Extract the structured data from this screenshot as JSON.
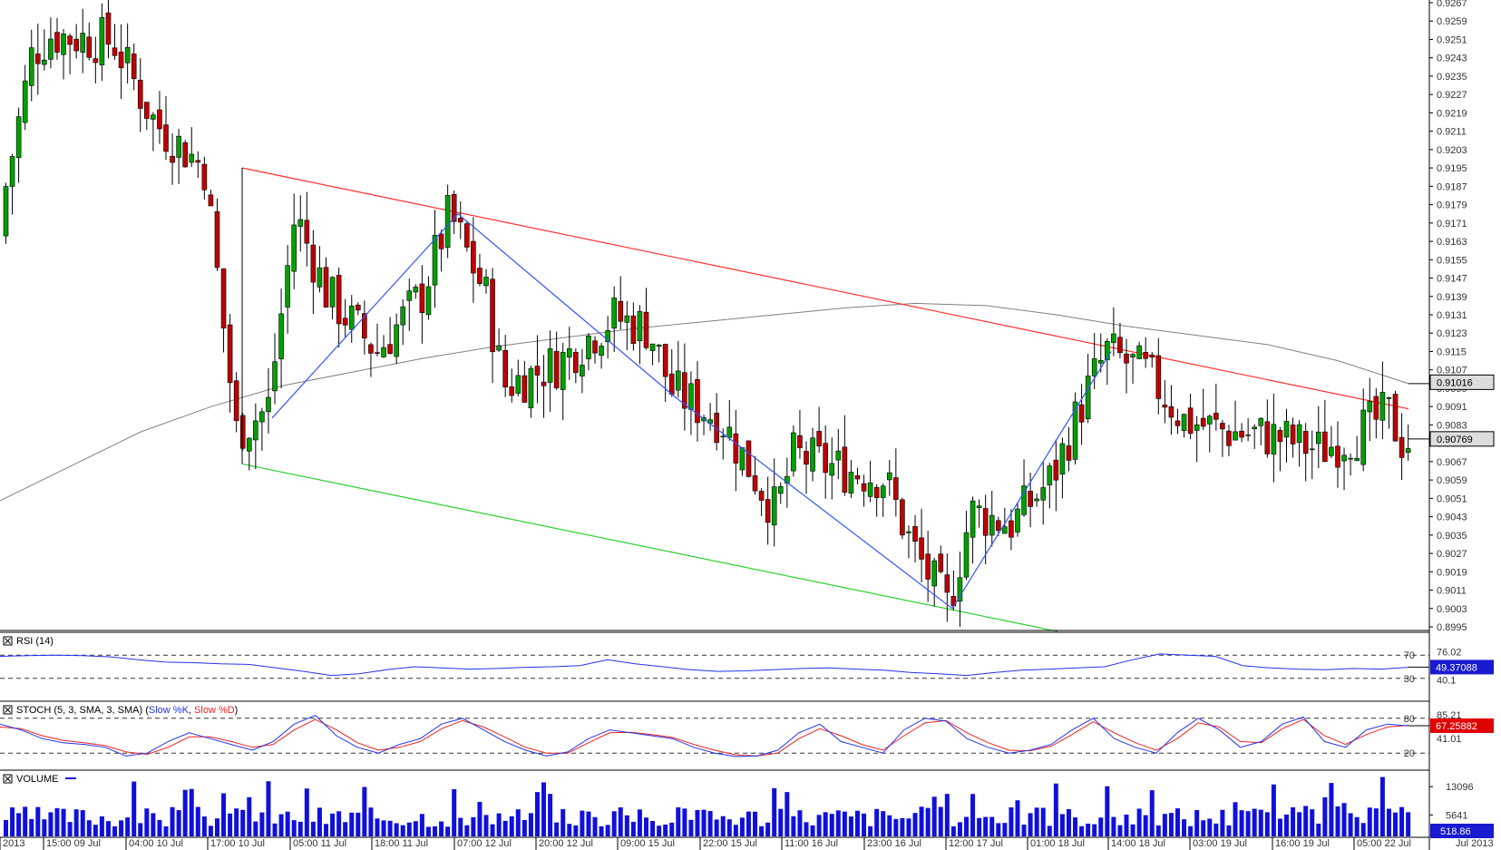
{
  "colors": {
    "up_candle": "#00a000",
    "down_candle": "#c00000",
    "wick": "#000000",
    "resistance_line": "#ff3030",
    "support_line": "#30d030",
    "pattern_line": "#3355ff",
    "moving_average": "#808080",
    "rsi_line": "#2233ee",
    "stoch_k": "#2233ee",
    "stoch_d": "#ee2222",
    "volume": "#1010dd",
    "price_tag_bg": "#dddddd",
    "rsi_tag_bg": "#1a1ad0",
    "stoch_tag_bg": "#e00000",
    "volume_tag_bg": "#1a1ad0"
  },
  "chart_data": {
    "type": "candlestick",
    "y_ticks": [
      "0.9267",
      "0.9259",
      "0.9251",
      "0.9243",
      "0.9235",
      "0.9227",
      "0.9219",
      "0.9211",
      "0.9203",
      "0.9195",
      "0.9187",
      "0.9179",
      "0.9171",
      "0.9163",
      "0.9155",
      "0.9147",
      "0.9139",
      "0.9131",
      "0.9123",
      "0.9115",
      "0.9107",
      "0.9099",
      "0.9091",
      "0.9083",
      "0.9075",
      "0.9067",
      "0.9059",
      "0.9051",
      "0.9043",
      "0.9035",
      "0.9027",
      "0.9019",
      "0.9011",
      "0.9003",
      "0.8995"
    ],
    "ylim": [
      0.8995,
      0.9267
    ],
    "x_labels": [
      "2013",
      "15:00 09 Jul",
      "04:00 10 Jul",
      "17:00 10 Jul",
      "05:00 11 Jul",
      "18:00 11 Jul",
      "07:00 12 Jul",
      "20:00 12 Jul",
      "09:00 15 Jul",
      "22:00 15 Jul",
      "11:00 16 Jul",
      "23:00 16 Jul",
      "12:00 17 Jul",
      "01:00 18 Jul",
      "14:00 18 Jul",
      "03:00 19 Jul",
      "16:00 19 Jul",
      "05:00 22 Jul",
      "Jul 2013"
    ],
    "price_tags": {
      "ma_value": "0.91016",
      "last_price": "0.90769"
    },
    "pattern_anchor_prices": [
      0.9175,
      0.9089,
      0.9176,
      0.9003,
      0.9115,
      0.9083,
      0.9076
    ],
    "resistance_line": [
      0.9195,
      0.909
    ],
    "support_line": [
      0.9066,
      0.8993
    ],
    "moving_average": [
      0.905,
      0.9065,
      0.908,
      0.9091,
      0.91,
      0.9106,
      0.9112,
      0.9117,
      0.9121,
      0.9125,
      0.9128,
      0.9131,
      0.9134,
      0.9136,
      0.9135,
      0.9131,
      0.9126,
      0.9122,
      0.9118,
      0.9111,
      0.9101
    ],
    "rsi": {
      "label": "RSI (14)",
      "levels": [
        70,
        30
      ],
      "extra_ticks": [
        "76.02",
        "40.1"
      ],
      "value_tag": "49.37088",
      "values": [
        68,
        69,
        70,
        69,
        67,
        62,
        58,
        57,
        55,
        54,
        48,
        42,
        35,
        38,
        45,
        50,
        48,
        46,
        47,
        49,
        50,
        52,
        62,
        55,
        50,
        45,
        42,
        43,
        45,
        47,
        48,
        46,
        44,
        40,
        38,
        35,
        40,
        44,
        46,
        48,
        50,
        62,
        72,
        70,
        68,
        52,
        48,
        46,
        45,
        47,
        46,
        49
      ]
    },
    "stochastic": {
      "label": "STOCH (5, 3, SMA, 3, SMA)",
      "legend": [
        "Slow %K",
        "Slow %D"
      ],
      "levels": [
        80,
        20
      ],
      "extra_ticks": [
        "85.21",
        "41.01"
      ],
      "value_tag": "67.25882",
      "k_values": [
        70,
        60,
        45,
        38,
        35,
        30,
        15,
        20,
        40,
        55,
        45,
        35,
        25,
        40,
        70,
        85,
        50,
        30,
        20,
        35,
        45,
        70,
        80,
        60,
        40,
        25,
        15,
        22,
        45,
        60,
        55,
        50,
        45,
        30,
        20,
        14,
        15,
        25,
        55,
        70,
        40,
        30,
        20,
        60,
        80,
        75,
        45,
        30,
        20,
        25,
        35,
        60,
        80,
        45,
        30,
        20,
        55,
        80,
        60,
        30,
        40,
        70,
        82,
        40,
        30,
        60,
        70,
        67
      ],
      "d_values": [
        65,
        62,
        50,
        42,
        38,
        33,
        22,
        18,
        30,
        48,
        48,
        40,
        30,
        35,
        60,
        78,
        60,
        38,
        25,
        30,
        40,
        62,
        76,
        65,
        48,
        30,
        20,
        20,
        38,
        55,
        56,
        52,
        47,
        35,
        25,
        17,
        15,
        20,
        45,
        62,
        50,
        35,
        25,
        50,
        72,
        76,
        55,
        38,
        25,
        24,
        32,
        52,
        74,
        55,
        38,
        25,
        45,
        72,
        65,
        40,
        38,
        62,
        78,
        50,
        35,
        52,
        65,
        68
      ]
    },
    "volume": {
      "label": "VOLUME",
      "ticks": [
        "13096",
        "5641"
      ],
      "value_tag": "518.86"
    }
  }
}
